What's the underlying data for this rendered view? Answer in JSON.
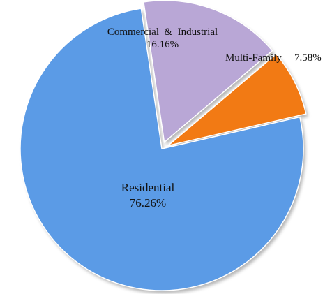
{
  "chart_data": {
    "type": "pie",
    "slices": [
      {
        "label": "Residential",
        "value_label": "76.26%",
        "value": 76.26,
        "color": "#5b9be6",
        "exploded": false
      },
      {
        "label": "Commercial  &  Industrial",
        "value_label": "16.16%",
        "value": 16.16,
        "color": "#b9a7d6",
        "exploded": true
      },
      {
        "label": "Multi-Family",
        "value_label": "7.58%",
        "value": 7.58,
        "color": "#f27a14",
        "exploded": true
      }
    ],
    "legend": "none",
    "labels_inside": true
  }
}
